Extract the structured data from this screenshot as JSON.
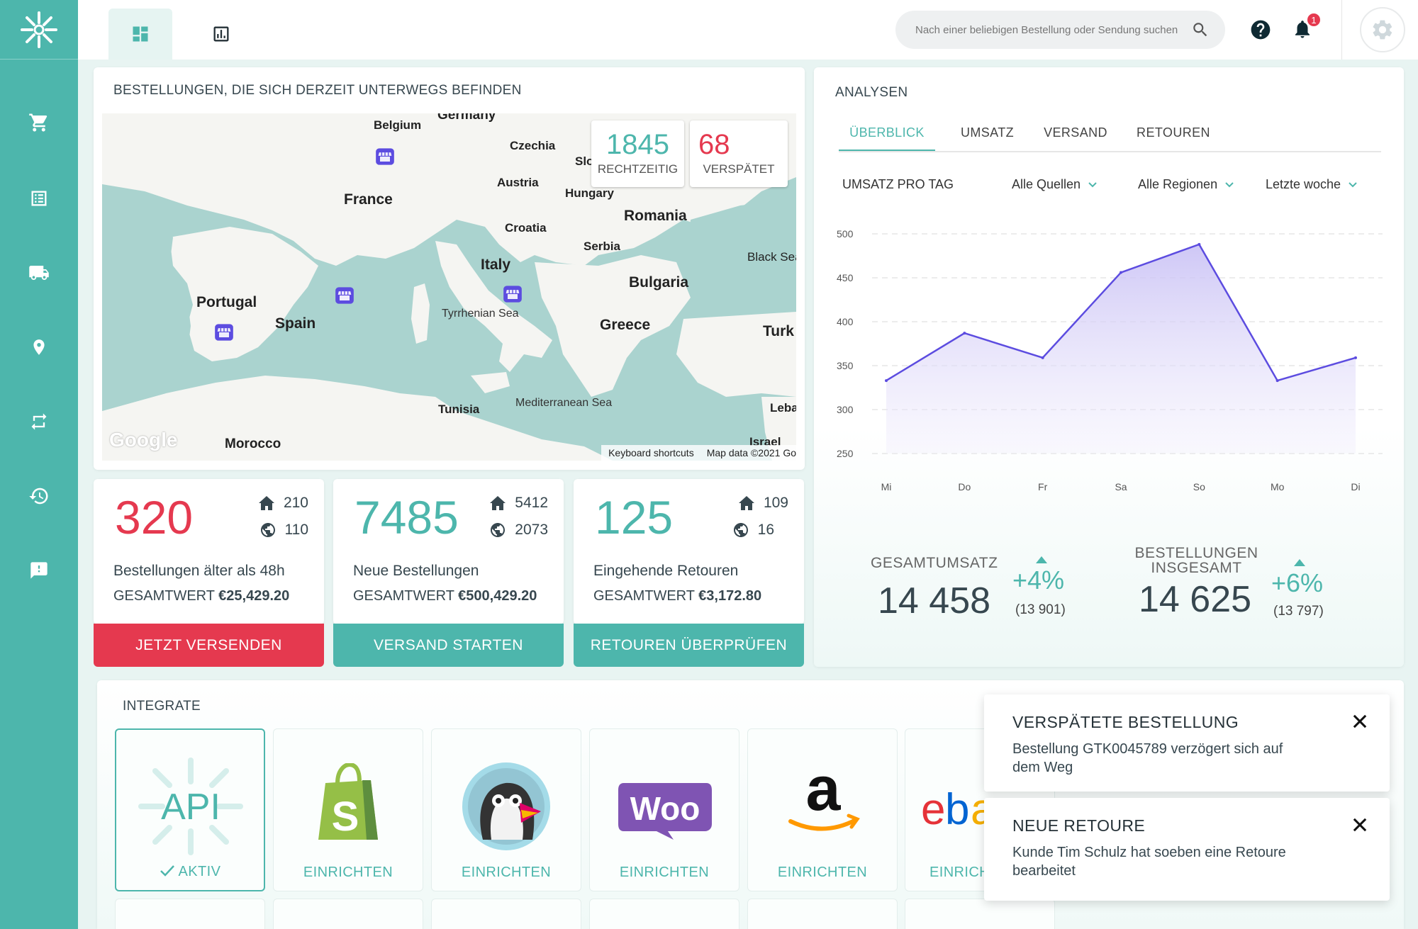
{
  "sidebar": {
    "items": [
      {
        "name": "cart-icon"
      },
      {
        "name": "orders-list-icon"
      },
      {
        "name": "shipping-truck-icon"
      },
      {
        "name": "location-pin-icon"
      },
      {
        "name": "returns-icon"
      },
      {
        "name": "history-icon"
      },
      {
        "name": "feedback-icon"
      }
    ]
  },
  "topbar": {
    "tabs": [
      {
        "name": "dashboard-icon"
      },
      {
        "name": "analytics-icon"
      }
    ],
    "search_placeholder": "Nach einer beliebigen Bestellung oder Sendung suchen",
    "notification_count": "1"
  },
  "map_card": {
    "title": "BESTELLUNGEN, DIE SICH DERZEIT UNTERWEGS BEFINDEN",
    "ontime_value": "1845",
    "ontime_label": "RECHTZEITIG",
    "late_value": "68",
    "late_label": "VERSPÄTET",
    "labels": {
      "germany": "Germany",
      "belgium": "Belgium",
      "czechia": "Czechia",
      "slo": "Slo",
      "austria": "Austria",
      "hungary": "Hungary",
      "france": "France",
      "romania": "Romania",
      "croatia": "Croatia",
      "serbia": "Serbia",
      "italy": "Italy",
      "black_sea": "Black Sea",
      "bulgaria": "Bulgaria",
      "portugal": "Portugal",
      "spain": "Spain",
      "tyrrhenian": "Tyrrhenian Sea",
      "greece": "Greece",
      "turk": "Turk",
      "tunisia": "Tunisia",
      "mediterranean": "Mediterranean Sea",
      "leba": "Leba",
      "morocco": "Morocco",
      "israel": "Israel"
    },
    "google": "Google",
    "keyboard_shortcuts": "Keyboard shortcuts",
    "map_data": "Map data ©2021 Go"
  },
  "stats": [
    {
      "value": "320",
      "home": "210",
      "world": "110",
      "desc": "Bestellungen älter als 48h",
      "total_label": "GESAMTWERT",
      "total_value": "€25,429.20",
      "button": "JETZT VERSENDEN",
      "color": "#e5394f",
      "btn_color": "#e5394f"
    },
    {
      "value": "7485",
      "home": "5412",
      "world": "2073",
      "desc": "Neue Bestellungen",
      "total_label": "GESAMTWERT",
      "total_value": "€500,429.20",
      "button": "VERSAND STARTEN",
      "color": "#4db6ac",
      "btn_color": "#4db6ac"
    },
    {
      "value": "125",
      "home": "109",
      "world": "16",
      "desc": "Eingehende Retouren",
      "total_label": "GESAMTWERT",
      "total_value": "€3,172.80",
      "button": "RETOUREN ÜBERPRÜFEN",
      "color": "#4db6ac",
      "btn_color": "#4db6ac"
    }
  ],
  "analysen": {
    "title": "ANALYSEN",
    "tabs": [
      "ÜBERBLICK",
      "UMSATZ",
      "VERSAND",
      "RETOUREN"
    ],
    "active_tab": "ÜBERBLICK",
    "chart_label": "UMSATZ PRO TAG",
    "filters": [
      "Alle Quellen",
      "Alle Regionen",
      "Letzte woche"
    ],
    "total_revenue_label": "GESAMTUMSATZ",
    "total_revenue": "14 458",
    "total_revenue_change": "+4%",
    "total_revenue_prev": "(13 901)",
    "total_orders_label_1": "BESTELLUNGEN",
    "total_orders_label_2": "INSGESAMT",
    "total_orders": "14 625",
    "total_orders_change": "+6%",
    "total_orders_prev": "(13 797)"
  },
  "chart_data": {
    "type": "area",
    "categories": [
      "Mi",
      "Do",
      "Fr",
      "Sa",
      "So",
      "Mo",
      "Di"
    ],
    "values": [
      333,
      387,
      359,
      456,
      488,
      333,
      359
    ],
    "yticks": [
      500,
      450,
      400,
      350,
      300,
      250
    ],
    "ylim": [
      250,
      500
    ],
    "grid": true,
    "line_color": "#5c4ce0"
  },
  "integrate": {
    "title": "INTEGRATE",
    "tiles": [
      {
        "name": "api-tile",
        "logo": "API",
        "label": "AKTIV",
        "active": true
      },
      {
        "name": "shopify-tile",
        "logo": "S",
        "label": "EINRICHTEN"
      },
      {
        "name": "prestashop-tile",
        "logo": "",
        "label": "EINRICHTEN"
      },
      {
        "name": "woocommerce-tile",
        "logo": "Woo",
        "label": "EINRICHTEN"
      },
      {
        "name": "amazon-tile",
        "logo": "a",
        "label": "EINRICHTEN"
      },
      {
        "name": "ebay-tile",
        "logo": "ebay",
        "label": "EINRICH"
      }
    ]
  },
  "toasts": [
    {
      "title": "VERSPÄTETE BESTELLUNG",
      "body": "Bestellung GTK0045789 verzögert sich auf dem Weg"
    },
    {
      "title": "NEUE RETOURE",
      "body": "Kunde Tim Schulz hat soeben eine Retoure bearbeitet"
    }
  ]
}
